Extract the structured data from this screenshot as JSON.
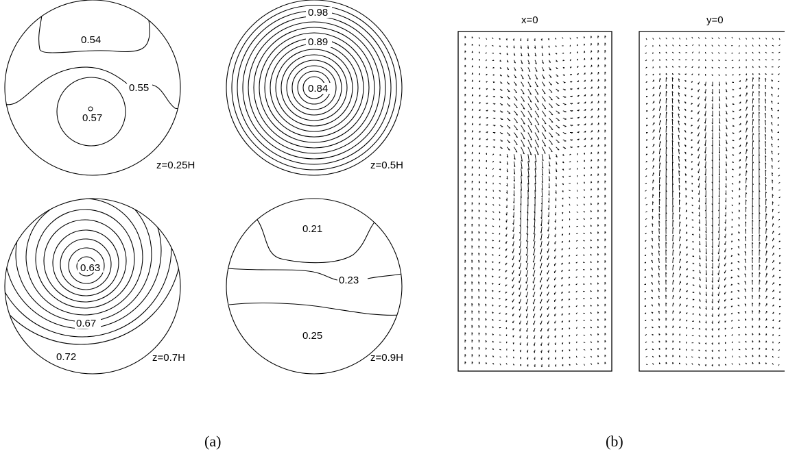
{
  "panel_a": {
    "caption": "(a)",
    "plots": [
      {
        "z_label": "z=0.25H",
        "contour_labels": [
          "0.54",
          "0.55",
          "0.57"
        ]
      },
      {
        "z_label": "z=0.5H",
        "contour_labels": [
          "0.98",
          "0.89",
          "0.84"
        ]
      },
      {
        "z_label": "z=0.7H",
        "contour_labels": [
          "0.63",
          "0.67",
          "0.72"
        ]
      },
      {
        "z_label": "z=0.9H",
        "contour_labels": [
          "0.21",
          "0.23",
          "0.25"
        ]
      }
    ]
  },
  "panel_b": {
    "caption": "(b)",
    "frames": [
      {
        "title": "x=0"
      },
      {
        "title": "y=0"
      }
    ]
  }
}
